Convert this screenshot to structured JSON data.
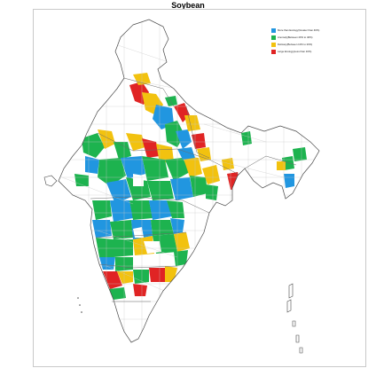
{
  "title": "Soybean",
  "legend": [
    {
      "label": "More than Ecology(Greater than 40%)",
      "color": "#2196e0"
    },
    {
      "label": "Anomaly(Between 20% to 40%)",
      "color": "#1db34f"
    },
    {
      "label": "Delicacy(Between 10% to 20%)",
      "color": "#f2c20f"
    },
    {
      "label": "Large Ecology(Less than 10%)",
      "color": "#e02424"
    }
  ],
  "colors": {
    "state_outline": "#4a4a4a",
    "district_outline": "#bdbdbd",
    "land": "#ffffff",
    "blue": "#2196e0",
    "green": "#1db34f",
    "yellow": "#f2c20f",
    "red": "#e02424"
  }
}
